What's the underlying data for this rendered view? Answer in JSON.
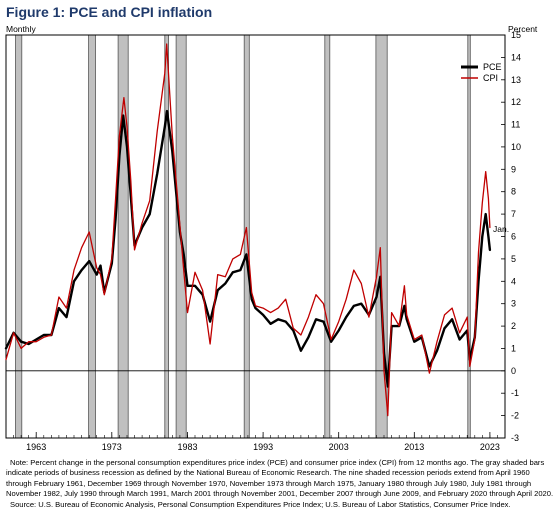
{
  "figure": {
    "title": "Figure 1: PCE and CPI inflation",
    "left_label": "Monthly",
    "right_label": "Percent",
    "annotation": "Jan."
  },
  "notes": {
    "note": "Note: Percent change in the personal consumption expenditures price index (PCE) and consumer price index (CPI) from 12 months ago. The gray shaded bars indicate periods of business recession as defined by the National Bureau of Economic Research. The nine shaded recession periods extend from April 1960 through February 1961, December 1969 through November 1970, November 1973 through March 1975, January 1980 through July 1980, July 1981 through November 1982, July 1990 through March 1991, March 2001 through November 2001, December 2007 through June 2009, and February 2020 through April 2020.",
    "source": "Source: U.S. Bureau of Economic Analysis, Personal Consumption Expenditures Price Index; U.S. Bureau of Labor Statistics, Consumer Price Index."
  },
  "chart_data": {
    "type": "line",
    "title": "Figure 1: PCE and CPI inflation",
    "xlabel": "",
    "ylabel": "Percent",
    "xlim": [
      1959.0,
      2025.0
    ],
    "ylim": [
      -3,
      15
    ],
    "x_ticks": [
      1963,
      1973,
      1983,
      1993,
      2003,
      2013,
      2023
    ],
    "y_ticks": [
      -3,
      -2,
      -1,
      0,
      1,
      2,
      3,
      4,
      5,
      6,
      7,
      8,
      9,
      10,
      11,
      12,
      13,
      14,
      15
    ],
    "grid": false,
    "legend": "top-right",
    "zero_line": true,
    "recession_shading": [
      {
        "start": 1960.25,
        "end": 1961.08
      },
      {
        "start": 1969.92,
        "end": 1970.83
      },
      {
        "start": 1973.83,
        "end": 1975.17
      },
      {
        "start": 1980.0,
        "end": 1980.5
      },
      {
        "start": 1981.5,
        "end": 1982.83
      },
      {
        "start": 1990.5,
        "end": 1991.17
      },
      {
        "start": 2001.17,
        "end": 2001.83
      },
      {
        "start": 2007.92,
        "end": 2009.42
      },
      {
        "start": 2020.08,
        "end": 2020.25
      }
    ],
    "series": [
      {
        "name": "PCE",
        "color": "#000000",
        "points": [
          [
            1959.0,
            1.0
          ],
          [
            1960.0,
            1.7
          ],
          [
            1961.0,
            1.3
          ],
          [
            1962.0,
            1.2
          ],
          [
            1963.0,
            1.4
          ],
          [
            1964.0,
            1.6
          ],
          [
            1965.0,
            1.6
          ],
          [
            1966.0,
            2.8
          ],
          [
            1967.0,
            2.4
          ],
          [
            1968.0,
            4.0
          ],
          [
            1969.0,
            4.5
          ],
          [
            1970.0,
            4.9
          ],
          [
            1971.0,
            4.3
          ],
          [
            1971.5,
            4.7
          ],
          [
            1972.0,
            3.5
          ],
          [
            1973.0,
            4.8
          ],
          [
            1973.5,
            6.8
          ],
          [
            1974.0,
            9.6
          ],
          [
            1974.5,
            11.4
          ],
          [
            1975.0,
            10.0
          ],
          [
            1975.5,
            7.8
          ],
          [
            1976.0,
            5.6
          ],
          [
            1977.0,
            6.4
          ],
          [
            1978.0,
            7.0
          ],
          [
            1979.0,
            8.8
          ],
          [
            1980.0,
            10.9
          ],
          [
            1980.3,
            11.6
          ],
          [
            1981.0,
            9.8
          ],
          [
            1982.0,
            6.2
          ],
          [
            1982.5,
            5.2
          ],
          [
            1983.0,
            3.8
          ],
          [
            1984.0,
            3.8
          ],
          [
            1985.0,
            3.4
          ],
          [
            1986.0,
            2.2
          ],
          [
            1987.0,
            3.6
          ],
          [
            1988.0,
            3.9
          ],
          [
            1989.0,
            4.4
          ],
          [
            1990.0,
            4.5
          ],
          [
            1990.8,
            5.2
          ],
          [
            1991.5,
            3.2
          ],
          [
            1992.0,
            2.8
          ],
          [
            1993.0,
            2.5
          ],
          [
            1994.0,
            2.1
          ],
          [
            1995.0,
            2.3
          ],
          [
            1996.0,
            2.2
          ],
          [
            1997.0,
            1.8
          ],
          [
            1998.0,
            0.9
          ],
          [
            1999.0,
            1.5
          ],
          [
            2000.0,
            2.3
          ],
          [
            2001.0,
            2.2
          ],
          [
            2002.0,
            1.3
          ],
          [
            2003.0,
            1.8
          ],
          [
            2004.0,
            2.4
          ],
          [
            2005.0,
            2.9
          ],
          [
            2006.0,
            3.0
          ],
          [
            2007.0,
            2.5
          ],
          [
            2008.0,
            3.3
          ],
          [
            2008.5,
            4.2
          ],
          [
            2009.0,
            0.8
          ],
          [
            2009.5,
            -0.7
          ],
          [
            2010.0,
            2.0
          ],
          [
            2011.0,
            2.0
          ],
          [
            2011.7,
            2.9
          ],
          [
            2012.0,
            2.3
          ],
          [
            2013.0,
            1.3
          ],
          [
            2014.0,
            1.5
          ],
          [
            2015.0,
            0.2
          ],
          [
            2016.0,
            0.9
          ],
          [
            2017.0,
            1.9
          ],
          [
            2018.0,
            2.3
          ],
          [
            2019.0,
            1.4
          ],
          [
            2020.0,
            1.8
          ],
          [
            2020.35,
            0.5
          ],
          [
            2021.0,
            1.5
          ],
          [
            2021.5,
            4.0
          ],
          [
            2022.0,
            6.0
          ],
          [
            2022.45,
            7.0
          ],
          [
            2022.8,
            6.0
          ],
          [
            2023.0,
            5.4
          ]
        ]
      },
      {
        "name": "CPI",
        "color": "#c00000",
        "points": [
          [
            1959.0,
            0.5
          ],
          [
            1960.0,
            1.7
          ],
          [
            1961.0,
            1.0
          ],
          [
            1962.0,
            1.3
          ],
          [
            1963.0,
            1.3
          ],
          [
            1964.0,
            1.5
          ],
          [
            1965.0,
            1.6
          ],
          [
            1966.0,
            3.3
          ],
          [
            1967.0,
            2.8
          ],
          [
            1968.0,
            4.5
          ],
          [
            1969.0,
            5.5
          ],
          [
            1970.0,
            6.2
          ],
          [
            1971.0,
            4.6
          ],
          [
            1971.5,
            4.3
          ],
          [
            1972.0,
            3.4
          ],
          [
            1973.0,
            5.0
          ],
          [
            1973.5,
            7.7
          ],
          [
            1974.0,
            10.5
          ],
          [
            1974.6,
            12.2
          ],
          [
            1975.0,
            10.9
          ],
          [
            1975.5,
            8.5
          ],
          [
            1976.0,
            5.4
          ],
          [
            1977.0,
            6.6
          ],
          [
            1978.0,
            7.6
          ],
          [
            1979.0,
            10.7
          ],
          [
            1980.0,
            13.3
          ],
          [
            1980.25,
            14.6
          ],
          [
            1981.0,
            10.5
          ],
          [
            1982.0,
            6.5
          ],
          [
            1982.5,
            4.5
          ],
          [
            1983.0,
            2.6
          ],
          [
            1984.0,
            4.4
          ],
          [
            1985.0,
            3.6
          ],
          [
            1986.0,
            1.2
          ],
          [
            1987.0,
            4.3
          ],
          [
            1988.0,
            4.2
          ],
          [
            1989.0,
            5.0
          ],
          [
            1990.0,
            5.2
          ],
          [
            1990.8,
            6.4
          ],
          [
            1991.5,
            3.5
          ],
          [
            1992.0,
            2.9
          ],
          [
            1993.0,
            2.8
          ],
          [
            1994.0,
            2.6
          ],
          [
            1995.0,
            2.8
          ],
          [
            1996.0,
            3.2
          ],
          [
            1997.0,
            1.9
          ],
          [
            1998.0,
            1.6
          ],
          [
            1999.0,
            2.4
          ],
          [
            2000.0,
            3.4
          ],
          [
            2001.0,
            3.0
          ],
          [
            2002.0,
            1.4
          ],
          [
            2003.0,
            2.2
          ],
          [
            2004.0,
            3.2
          ],
          [
            2005.0,
            4.5
          ],
          [
            2006.0,
            3.9
          ],
          [
            2007.0,
            2.4
          ],
          [
            2008.0,
            4.2
          ],
          [
            2008.5,
            5.5
          ],
          [
            2009.0,
            0.0
          ],
          [
            2009.5,
            -2.0
          ],
          [
            2010.0,
            2.6
          ],
          [
            2011.0,
            2.0
          ],
          [
            2011.7,
            3.8
          ],
          [
            2012.0,
            2.5
          ],
          [
            2013.0,
            1.4
          ],
          [
            2014.0,
            1.6
          ],
          [
            2015.0,
            -0.1
          ],
          [
            2016.0,
            1.3
          ],
          [
            2017.0,
            2.5
          ],
          [
            2018.0,
            2.8
          ],
          [
            2019.0,
            1.7
          ],
          [
            2020.0,
            2.4
          ],
          [
            2020.35,
            0.2
          ],
          [
            2021.0,
            1.4
          ],
          [
            2021.5,
            5.3
          ],
          [
            2022.0,
            7.5
          ],
          [
            2022.45,
            8.9
          ],
          [
            2022.8,
            7.7
          ],
          [
            2023.0,
            6.4
          ]
        ]
      }
    ]
  }
}
